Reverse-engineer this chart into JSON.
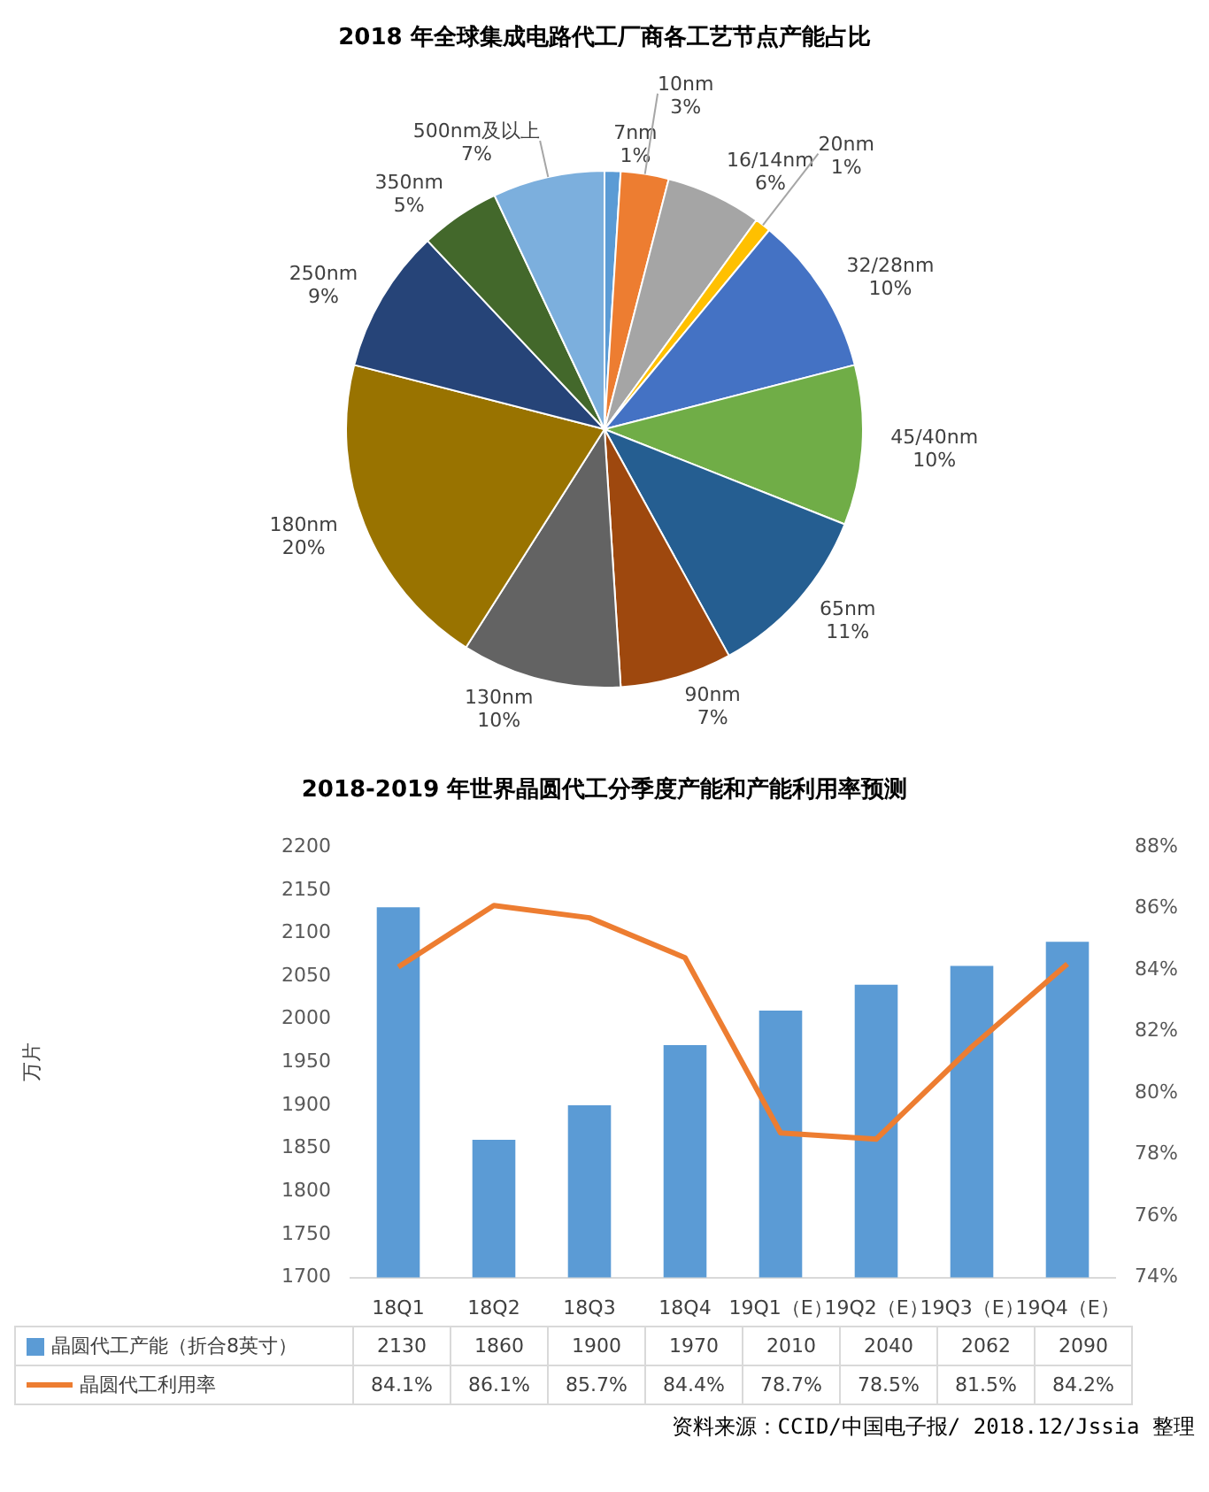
{
  "chart_data": [
    {
      "type": "pie",
      "title": "2018 年全球集成电路代工厂商各工艺节点产能占比",
      "categories": [
        "7nm",
        "10nm",
        "16/14nm",
        "20nm",
        "32/28nm",
        "45/40nm",
        "65nm",
        "90nm",
        "130nm",
        "180nm",
        "250nm",
        "350nm",
        "500nm及以上"
      ],
      "values": [
        1,
        3,
        6,
        1,
        10,
        10,
        11,
        7,
        10,
        20,
        9,
        5,
        7
      ],
      "colors": [
        "#5b9bd5",
        "#ed7d31",
        "#a5a5a5",
        "#ffc000",
        "#4472c4",
        "#70ad47",
        "#255e91",
        "#9e480e",
        "#636363",
        "#997300",
        "#264478",
        "#43682b",
        "#7cafdd"
      ],
      "value_labels": [
        "1%",
        "3%",
        "6%",
        "1%",
        "10%",
        "10%",
        "11%",
        "7%",
        "10%",
        "20%",
        "9%",
        "5%",
        "7%"
      ]
    },
    {
      "type": "bar",
      "title": "2018-2019 年世界晶圆代工分季度产能和产能利用率预测",
      "categories": [
        "18Q1",
        "18Q2",
        "18Q3",
        "18Q4",
        "19Q1（E）",
        "19Q2（E）",
        "19Q3（E）",
        "19Q4（E）"
      ],
      "ylabel": "万片",
      "ylim": [
        1700,
        2200
      ],
      "yticks": [
        1700,
        1750,
        1800,
        1850,
        1900,
        1950,
        2000,
        2050,
        2100,
        2150,
        2200
      ],
      "y2lim": [
        74,
        88
      ],
      "y2ticks": [
        {
          "value": 74,
          "label": "74%"
        },
        {
          "value": 76,
          "label": "76%"
        },
        {
          "value": 78,
          "label": "78%"
        },
        {
          "value": 80,
          "label": "80%"
        },
        {
          "value": 82,
          "label": "82%"
        },
        {
          "value": 84,
          "label": "84%"
        },
        {
          "value": 86,
          "label": "86%"
        },
        {
          "value": 88,
          "label": "88%"
        }
      ],
      "legend": "bottom",
      "series": [
        {
          "name": "晶圆代工产能（折合8英寸）",
          "type": "bar",
          "color": "#5b9bd5",
          "values": [
            2130,
            1860,
            1900,
            1970,
            2010,
            2040,
            2062,
            2090
          ],
          "value_labels": [
            "2130",
            "1860",
            "1900",
            "1970",
            "2010",
            "2040",
            "2062",
            "2090"
          ]
        },
        {
          "name": "晶圆代工利用率",
          "type": "line",
          "axis": "y2",
          "color": "#ed7d31",
          "values": [
            84.1,
            86.1,
            85.7,
            84.4,
            78.7,
            78.5,
            81.5,
            84.2
          ],
          "value_labels": [
            "84.1%",
            "86.1%",
            "85.7%",
            "84.4%",
            "78.7%",
            "78.5%",
            "81.5%",
            "84.2%"
          ]
        }
      ],
      "annotations": [
        "资料来源：CCID/中国电子报/ 2018.12/Jssia 整理"
      ]
    }
  ]
}
